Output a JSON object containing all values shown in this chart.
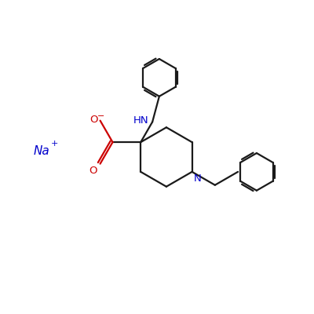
{
  "background_color": "#ffffff",
  "bond_color": "#1a1a1a",
  "na_color": "#0000cc",
  "o_color": "#cc0000",
  "n_color": "#0000cc",
  "line_width": 1.6,
  "figsize": [
    4.0,
    4.0
  ],
  "dpi": 100,
  "na_label": "Na",
  "na_charge": "+",
  "hn_label": "HN",
  "n_label": "N",
  "o_label": "O",
  "ominus": "−"
}
